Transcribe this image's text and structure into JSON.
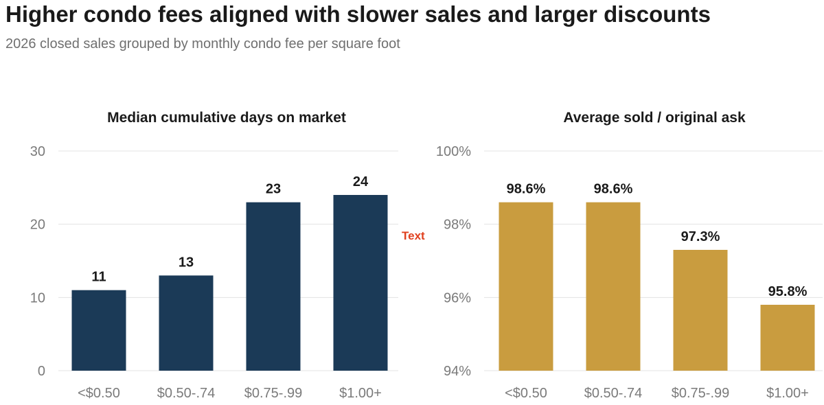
{
  "title": "Higher condo fees aligned with slower sales and larger discounts",
  "subtitle": "2026 closed sales grouped by monthly condo fee per square foot",
  "floating_note": {
    "text": "Text",
    "color": "#e0401e"
  },
  "colors": {
    "dom_bar": "#1b3a57",
    "ask_bar": "#c99c3f"
  },
  "chart_data": [
    {
      "type": "bar",
      "title": "Median cumulative days on market",
      "categories": [
        "<$0.50",
        "$0.50-.74",
        "$0.75-.99",
        "$1.00+"
      ],
      "values": [
        11,
        13,
        23,
        24
      ],
      "value_labels": [
        "11",
        "13",
        "23",
        "24"
      ],
      "ylim": [
        0,
        30
      ],
      "yticks": [
        0,
        10,
        20,
        30
      ],
      "ytick_labels": [
        "0",
        "10",
        "20",
        "30"
      ],
      "grid": true,
      "color": "#1b3a57"
    },
    {
      "type": "bar",
      "title": "Average sold / original ask",
      "categories": [
        "<$0.50",
        "$0.50-.74",
        "$0.75-.99",
        "$1.00+"
      ],
      "values": [
        98.6,
        98.6,
        97.3,
        95.8
      ],
      "value_labels": [
        "98.6%",
        "98.6%",
        "97.3%",
        "95.8%"
      ],
      "ylim": [
        94,
        100
      ],
      "yticks": [
        94,
        96,
        98,
        100
      ],
      "ytick_labels": [
        "94%",
        "96%",
        "98%",
        "100%"
      ],
      "grid": true,
      "color": "#c99c3f"
    }
  ]
}
